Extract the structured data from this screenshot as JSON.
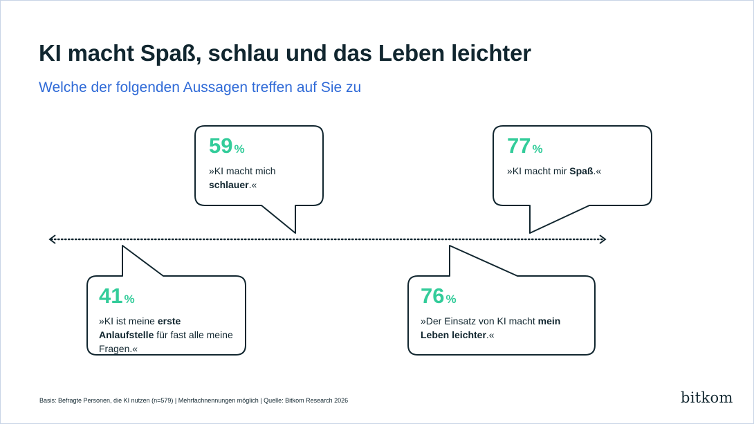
{
  "title": "KI macht Spaß, schlau und das Leben leichter",
  "subtitle": "Welche der folgenden Aussagen treffen auf Sie zu",
  "footnote": "Basis: Befragte Personen, die KI nutzen (n=579) | Mehrfachnennungen möglich | Quelle: Bitkom Research 2026",
  "logo_text": "bitkom",
  "colors": {
    "value": "#33cc9a",
    "subtitle": "#2f6ad7",
    "text": "#11262f"
  },
  "chart_data": {
    "type": "bar",
    "categories": [
      "»KI ist meine erste Anlaufstelle für fast alle meine Fragen.«",
      "»KI macht mich schlauer.«",
      "»Der Einsatz von KI macht mein Leben leichter.«",
      "»KI macht mir Spaß.«"
    ],
    "values": [
      41,
      59,
      76,
      77
    ],
    "unit": "%",
    "items": [
      {
        "value": 41,
        "unit": "%",
        "quote": [
          {
            "t": "»KI ist meine ",
            "b": false
          },
          {
            "t": "erste Anlaufstelle",
            "b": true
          },
          {
            "t": " für fast alle meine Fragen.«",
            "b": false
          }
        ]
      },
      {
        "value": 59,
        "unit": "%",
        "quote": [
          {
            "t": "»KI macht mich ",
            "b": false
          },
          {
            "t": "schlauer",
            "b": true
          },
          {
            "t": ".«",
            "b": false
          }
        ]
      },
      {
        "value": 76,
        "unit": "%",
        "quote": [
          {
            "t": "»Der Einsatz von KI macht ",
            "b": false
          },
          {
            "t": "mein Leben leichter",
            "b": true
          },
          {
            "t": ".«",
            "b": false
          }
        ]
      },
      {
        "value": 77,
        "unit": "%",
        "quote": [
          {
            "t": "»KI macht mir ",
            "b": false
          },
          {
            "t": "Spaß",
            "b": true
          },
          {
            "t": ".«",
            "b": false
          }
        ]
      }
    ]
  }
}
